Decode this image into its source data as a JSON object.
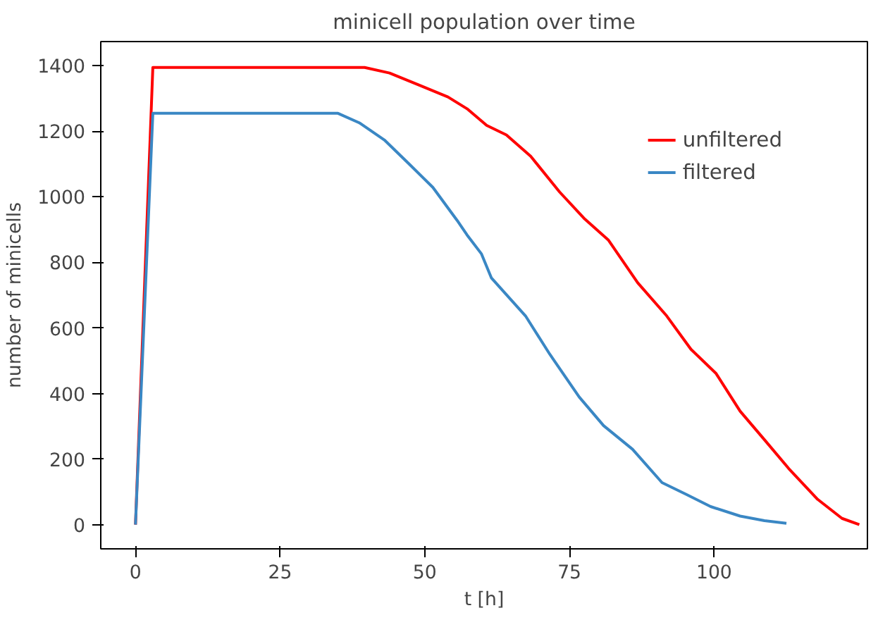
{
  "chart_data": {
    "type": "line",
    "title": "minicell population over time",
    "xlabel": "t [h]",
    "ylabel": "number of minicells",
    "xlim": [
      -6,
      126.5
    ],
    "ylim": [
      -74,
      1474
    ],
    "xticks": [
      0,
      25,
      50,
      75,
      100
    ],
    "yticks": [
      0,
      200,
      400,
      600,
      800,
      1000,
      1200,
      1400
    ],
    "grid": false,
    "legend": "top right",
    "line_style": "solid",
    "marker": "none",
    "series": [
      {
        "name": "unfiltered",
        "color": "#ff0000",
        "x": [
          0,
          3,
          39.6,
          43.9,
          48.9,
          54.0,
          57.3,
          60.7,
          64.1,
          68.3,
          73.3,
          77.5,
          81.7,
          86.8,
          91.8,
          96.0,
          100.3,
          104.5,
          108.7,
          112.9,
          117.9,
          122.1,
          125.1
        ],
        "values": [
          0,
          1395,
          1395,
          1378,
          1342,
          1305,
          1269,
          1218,
          1189,
          1124,
          1015,
          935,
          869,
          738,
          637,
          535,
          462,
          346,
          259,
          171,
          77,
          19,
          0
        ]
      },
      {
        "name": "filtered",
        "color": "#3a87c4",
        "x": [
          0,
          3,
          35.0,
          38.8,
          43.0,
          47.2,
          51.4,
          55.6,
          57.3,
          59.8,
          61.5,
          67.4,
          71.6,
          76.7,
          80.9,
          85.9,
          91.0,
          95.2,
          99.4,
          104.5,
          108.7,
          112.5
        ],
        "values": [
          0,
          1255,
          1255,
          1225,
          1174,
          1102,
          1029,
          928,
          884,
          826,
          753,
          637,
          520,
          389,
          302,
          230,
          128,
          92,
          55,
          26,
          12,
          4
        ]
      }
    ]
  }
}
